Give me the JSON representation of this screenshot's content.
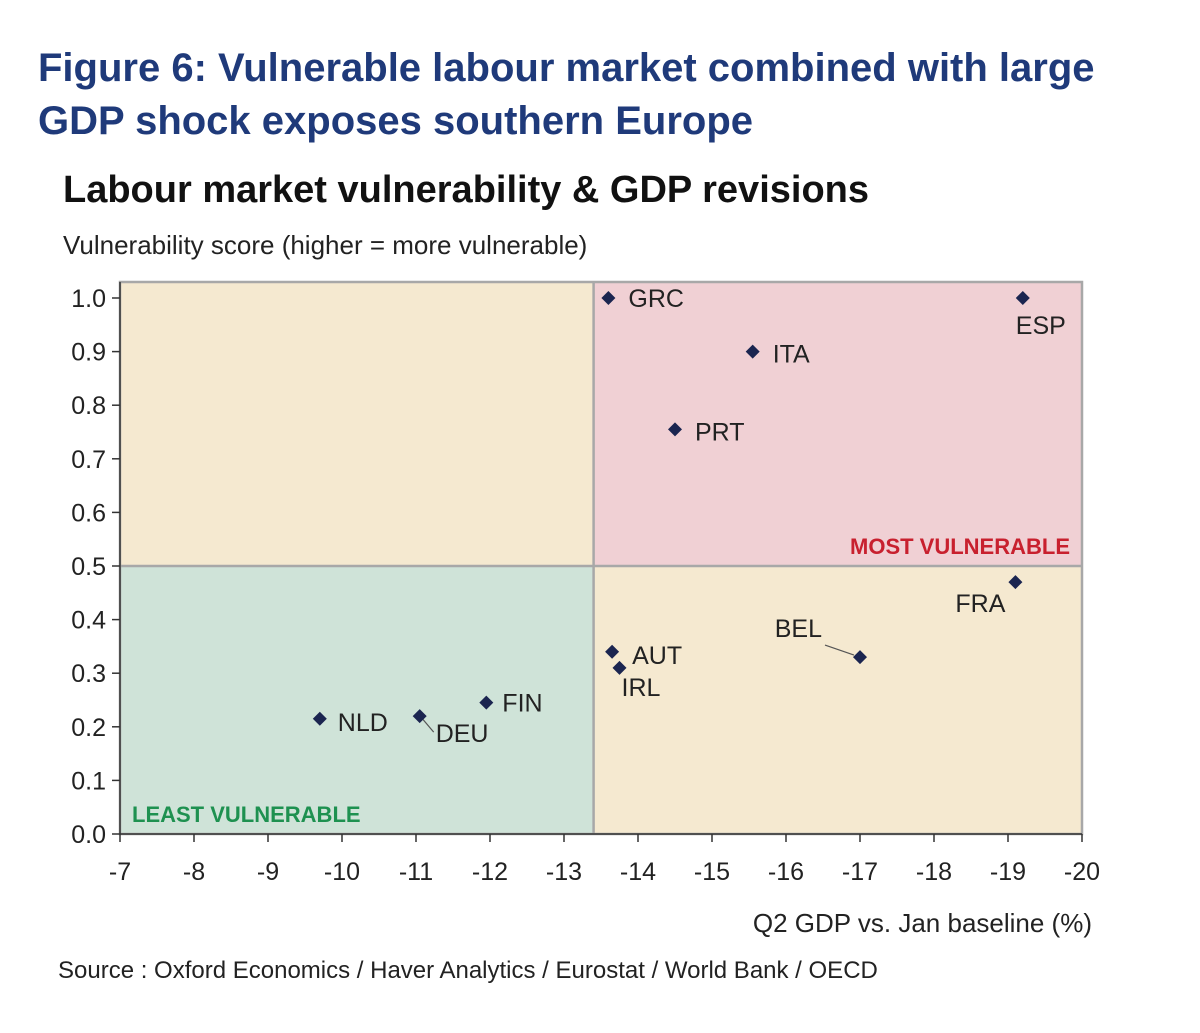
{
  "figure_title": "Figure 6: Vulnerable labour market combined with large GDP shock exposes southern Europe",
  "source": "Source : Oxford Economics / Haver Analytics / Eurostat / World Bank / OECD",
  "colors": {
    "title_blue": "#1f3a7a",
    "point": "#1b2550",
    "quad_neutral": "#f5e9d0",
    "quad_most": "#f0d0d4",
    "quad_least": "#cfe3d8",
    "most_label": "#c8202e",
    "least_label": "#1e9150",
    "frame": "#a8a8a8"
  },
  "chart_data": {
    "type": "scatter",
    "title": "Labour market vulnerability & GDP revisions",
    "xlabel": "Q2 GDP vs. Jan baseline (%)",
    "ylabel": "Vulnerability score (higher = more vulnerable)",
    "xlim": [
      -7,
      -20
    ],
    "ylim": [
      0,
      1.0
    ],
    "x_reversed": true,
    "x_ticks": [
      "-7",
      "-8",
      "-9",
      "-10",
      "-11",
      "-12",
      "-13",
      "-14",
      "-15",
      "-16",
      "-17",
      "-18",
      "-19",
      "-20"
    ],
    "y_ticks": [
      "0.0",
      "0.1",
      "0.2",
      "0.3",
      "0.4",
      "0.5",
      "0.6",
      "0.7",
      "0.8",
      "0.9",
      "1.0"
    ],
    "grid": false,
    "quadrant_split": {
      "x": -13.4,
      "y": 0.5
    },
    "quadrant_labels": {
      "most": "MOST VULNERABLE",
      "least": "LEAST VULNERABLE"
    },
    "points": [
      {
        "label": "GRC",
        "x": -13.6,
        "y": 1.0
      },
      {
        "label": "ESP",
        "x": -19.2,
        "y": 1.0
      },
      {
        "label": "ITA",
        "x": -15.55,
        "y": 0.9
      },
      {
        "label": "PRT",
        "x": -14.5,
        "y": 0.755
      },
      {
        "label": "FRA",
        "x": -19.1,
        "y": 0.47
      },
      {
        "label": "BEL",
        "x": -17.0,
        "y": 0.33
      },
      {
        "label": "AUT",
        "x": -13.65,
        "y": 0.34
      },
      {
        "label": "IRL",
        "x": -13.75,
        "y": 0.31
      },
      {
        "label": "FIN",
        "x": -11.95,
        "y": 0.245
      },
      {
        "label": "NLD",
        "x": -9.7,
        "y": 0.215
      },
      {
        "label": "DEU",
        "x": -11.05,
        "y": 0.22
      }
    ]
  }
}
